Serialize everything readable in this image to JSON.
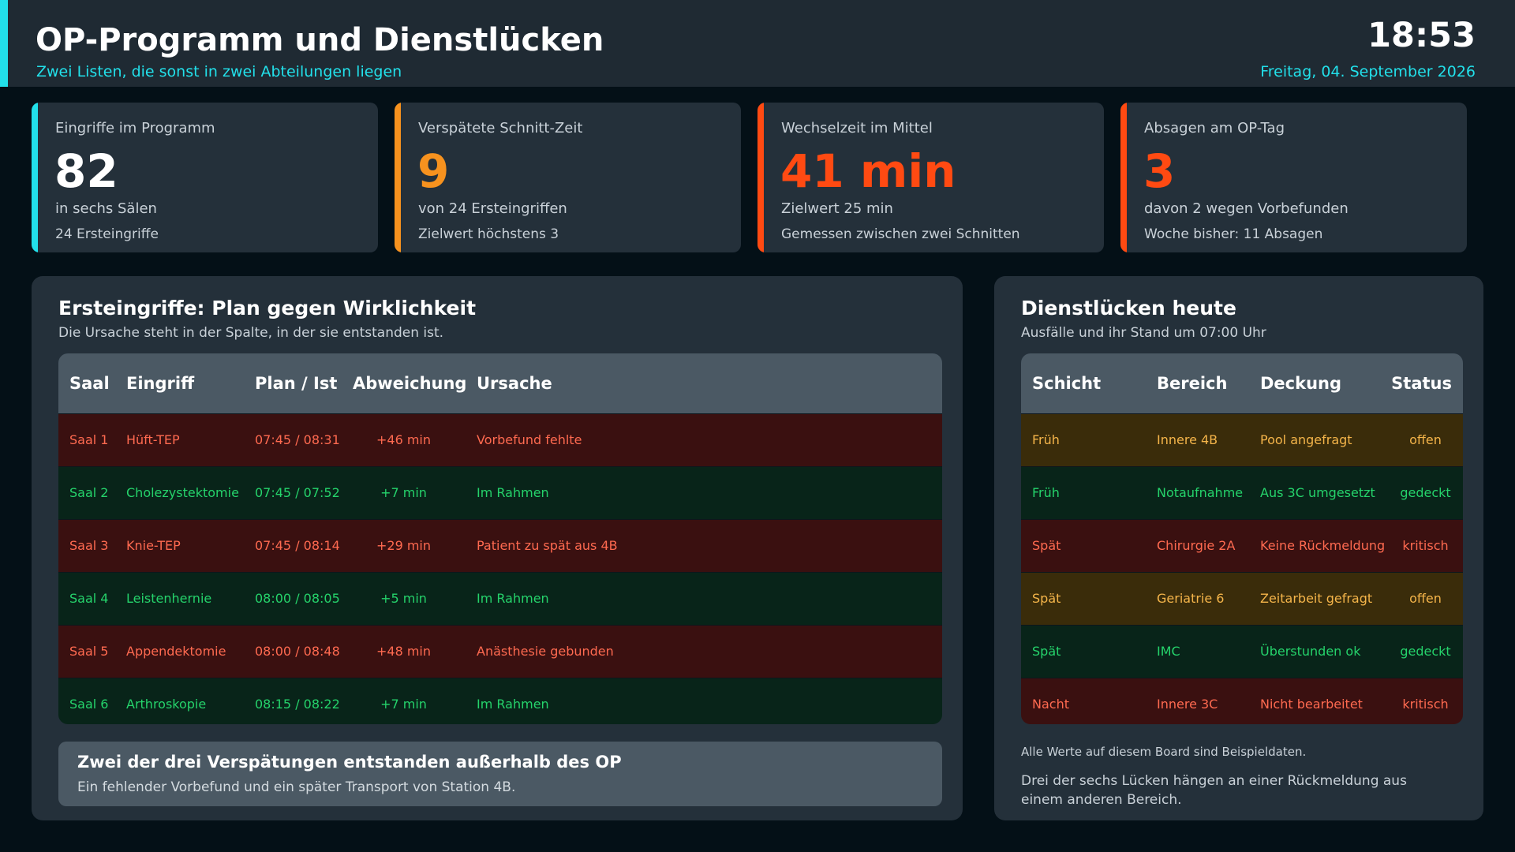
{
  "header": {
    "title": "OP-Programm und Dienstlücken",
    "subtitle": "Zwei Listen, die sonst in zwei Abteilungen liegen",
    "time": "18:53",
    "date": "Freitag, 04. September 2026",
    "accent_color": "#22e0ea"
  },
  "kpis": [
    {
      "label": "Eingriffe im Programm",
      "value": "82",
      "sub1": "in sechs Sälen",
      "sub2": "24 Ersteingriffe",
      "color": "#22e0ea",
      "value_color": "#ffffff"
    },
    {
      "label": "Verspätete Schnitt-Zeit",
      "value": "9",
      "sub1": "von 24 Ersteingriffen",
      "sub2": "Zielwert höchstens 3",
      "color": "#f7921e",
      "value_color": "#f7921e"
    },
    {
      "label": "Wechselzeit im Mittel",
      "value": "41 min",
      "sub1": "Zielwert 25 min",
      "sub2": "Gemessen zwischen zwei Schnitten",
      "color": "#ff4a12",
      "value_color": "#ff4a12"
    },
    {
      "label": "Absagen am OP-Tag",
      "value": "3",
      "sub1": "davon 2 wegen Vorbefunden",
      "sub2": "Woche bisher: 11 Absagen",
      "color": "#ff4a12",
      "value_color": "#ff4a12"
    }
  ],
  "left_panel": {
    "title": "Ersteingriffe: Plan gegen Wirklichkeit",
    "subtitle": "Die Ursache steht in der Spalte, in der sie entstanden ist.",
    "columns": [
      "Saal",
      "Eingriff",
      "Plan / Ist",
      "Abweichung",
      "Ursache"
    ],
    "rows": [
      {
        "saal": "Saal 1",
        "eingriff": "Hüft-TEP",
        "plan_ist": "07:45 / 08:31",
        "abweichung": "+46 min",
        "ursache": "Vorbefund fehlte",
        "status": "late"
      },
      {
        "saal": "Saal 2",
        "eingriff": "Cholezystektomie",
        "plan_ist": "07:45 / 07:52",
        "abweichung": "+7 min",
        "ursache": "Im Rahmen",
        "status": "ok"
      },
      {
        "saal": "Saal 3",
        "eingriff": "Knie-TEP",
        "plan_ist": "07:45 / 08:14",
        "abweichung": "+29 min",
        "ursache": "Patient zu spät aus 4B",
        "status": "late"
      },
      {
        "saal": "Saal 4",
        "eingriff": "Leistenhernie",
        "plan_ist": "08:00 / 08:05",
        "abweichung": "+5 min",
        "ursache": "Im Rahmen",
        "status": "ok"
      },
      {
        "saal": "Saal 5",
        "eingriff": "Appendektomie",
        "plan_ist": "08:00 / 08:48",
        "abweichung": "+48 min",
        "ursache": "Anästhesie gebunden",
        "status": "late"
      },
      {
        "saal": "Saal 6",
        "eingriff": "Arthroskopie",
        "plan_ist": "08:15 / 08:22",
        "abweichung": "+7 min",
        "ursache": "Im Rahmen",
        "status": "ok"
      }
    ],
    "callout_title": "Zwei der drei Verspätungen entstanden außerhalb des OP",
    "callout_text": "Ein fehlender Vorbefund und ein später Transport von Station 4B."
  },
  "right_panel": {
    "title": "Dienstlücken heute",
    "subtitle": "Ausfälle und ihr Stand um 07:00 Uhr",
    "columns": [
      "Schicht",
      "Bereich",
      "Deckung",
      "Status"
    ],
    "rows": [
      {
        "schicht": "Früh",
        "bereich": "Innere 4B",
        "deckung": "Pool angefragt",
        "status": "offen",
        "kind": "open"
      },
      {
        "schicht": "Früh",
        "bereich": "Notaufnahme",
        "deckung": "Aus 3C umgesetzt",
        "status": "gedeckt",
        "kind": "covered"
      },
      {
        "schicht": "Spät",
        "bereich": "Chirurgie 2A",
        "deckung": "Keine Rückmeldung",
        "status": "kritisch",
        "kind": "critical"
      },
      {
        "schicht": "Spät",
        "bereich": "Geriatrie 6",
        "deckung": "Zeitarbeit gefragt",
        "status": "offen",
        "kind": "open"
      },
      {
        "schicht": "Spät",
        "bereich": "IMC",
        "deckung": "Überstunden ok",
        "status": "gedeckt",
        "kind": "covered"
      },
      {
        "schicht": "Nacht",
        "bereich": "Innere 3C",
        "deckung": "Nicht bearbeitet",
        "status": "kritisch",
        "kind": "critical"
      }
    ],
    "note1": "Alle Werte auf diesem Board sind Beispieldaten.",
    "note2": "Drei der sechs Lücken hängen an einer Rückmeldung aus einem anderen Bereich."
  }
}
